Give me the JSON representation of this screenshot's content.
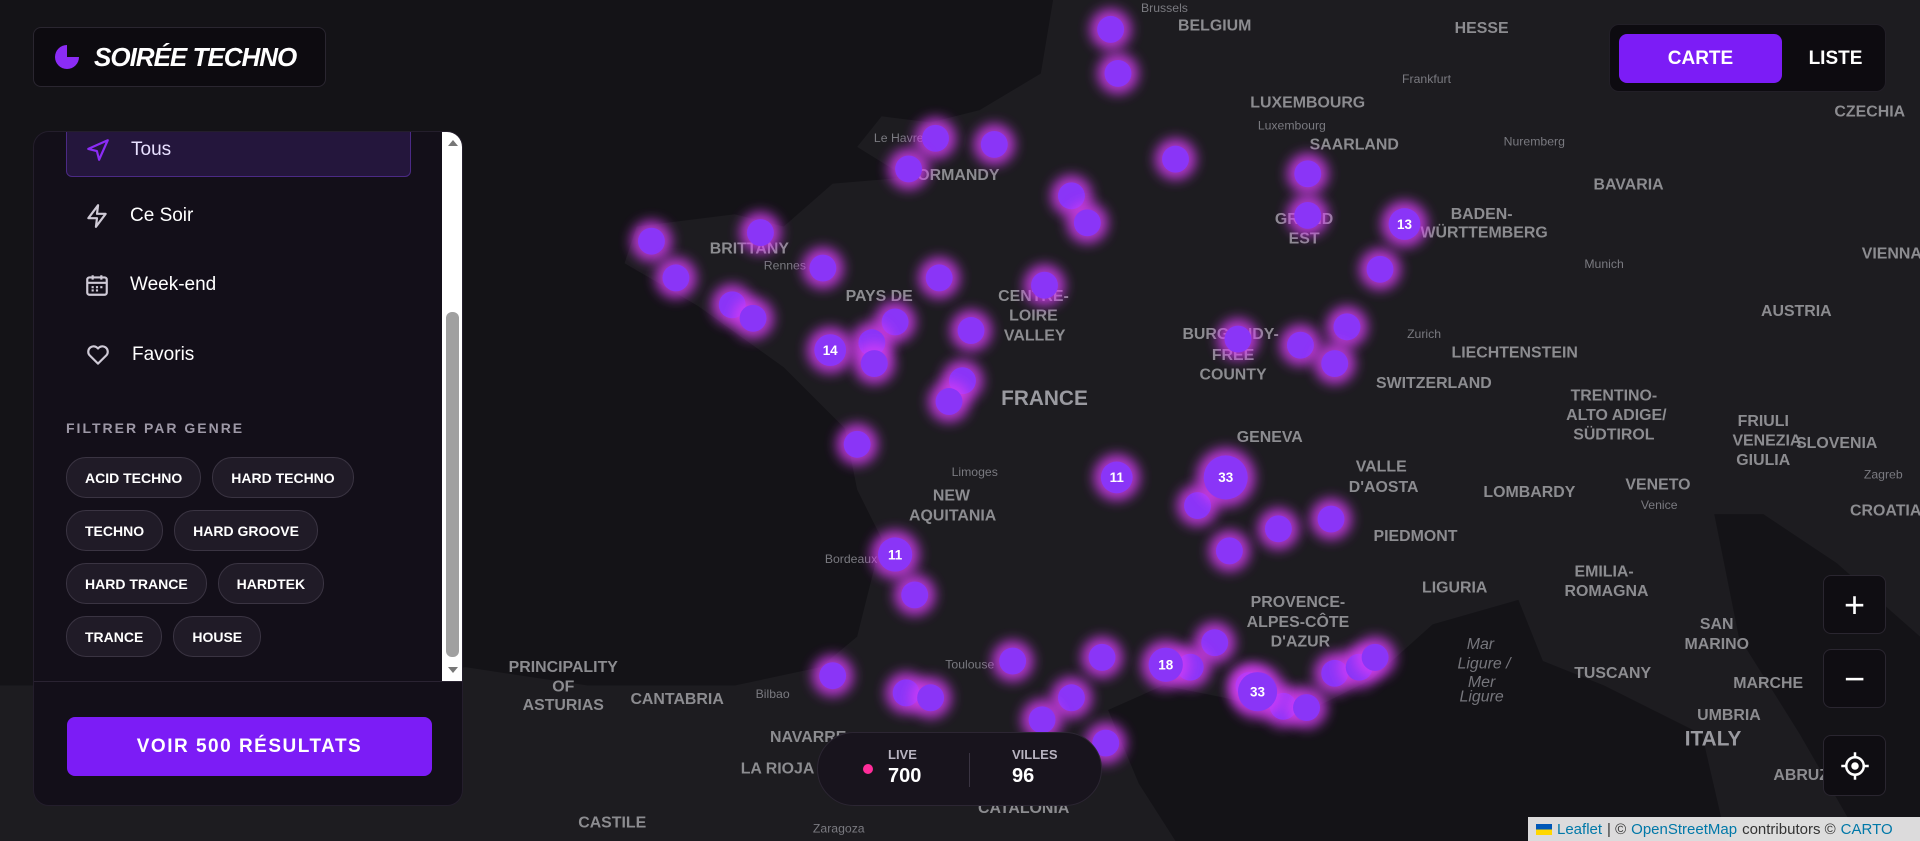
{
  "header": {
    "logo": "SOIRÉE TECHNO",
    "nav": [
      "CARTE",
      "LISTE"
    ]
  },
  "sidebar": {
    "menu": [
      "Tous",
      "Ce Soir",
      "Week-end",
      "Favoris"
    ],
    "filter_title": "FILTRER PAR GENRE",
    "genres": [
      "ACID TECHNO",
      "HARD TECHNO",
      "TECHNO",
      "HARD GROOVE",
      "HARD TRANCE",
      "HARDTEK",
      "TRANCE",
      "HOUSE"
    ],
    "button": "VOIR 500 RÉSULTATS"
  },
  "stats": [
    {
      "label": "LIVE",
      "value": 700
    },
    {
      "label": "VILLES",
      "value": 96
    }
  ],
  "map": {
    "clusters": [
      14,
      13,
      11,
      33,
      11,
      18,
      33
    ],
    "labels": [
      "BELGIUM",
      "Brussels",
      "HESSE",
      "Frankfurt",
      "LUXEMBOURG",
      "Luxembourg",
      "SAARLAND",
      "Nuremberg",
      "BAVARIA",
      "BADEN-",
      "WÜRTTEMBERG",
      "CZECHIA",
      "Munich",
      "VIENNA",
      "AUSTRIA",
      "Zurich",
      "LIECHTENSTEIN",
      "SWITZERLAND",
      "FRANCE",
      "BRITTANY",
      "NORMANDY",
      "CENTRE-",
      "LOIRE",
      "VALLEY",
      "GRAND",
      "EST",
      "BURGUNDY-",
      "FREE",
      "COUNTY",
      "PAYS DE",
      "Limoges",
      "NEW",
      "AQUITANIA",
      "Bordeaux",
      "GENEVA",
      "VALLE",
      "D'AOSTA",
      "LOMBARDY",
      "PIEDMONT",
      "TRENTINO-",
      "ALTO ADIGE/",
      "SÜDTIROL",
      "FRIULI",
      "VENEZIA",
      "GIULIA",
      "SLOVENIA",
      "VENETO",
      "Venice",
      "Zagreb",
      "CROATIA",
      "LIGURIA",
      "EMILIA-",
      "ROMAGNA",
      "PROVENCE-",
      "ALPES-CÔTE",
      "D'AZUR",
      "SAN",
      "MARINO",
      "MARCHE",
      "TUSCANY",
      "UMBRIA",
      "ITALY",
      "ABRUZZO",
      "Mar",
      "Ligure /",
      "Mer",
      "Ligure",
      "PRINCIPALITY",
      "OF",
      "ASTURIAS",
      "CANTABRIA",
      "Bilbao",
      "NAVARRE",
      "LA RIOJA",
      "CATALONIA",
      "Zaragoza",
      "CASTILE",
      "Toulouse",
      "Le Havre",
      "Rennes"
    ],
    "zoom": [
      "+",
      "−"
    ],
    "attribution": [
      "Leaflet",
      "| ©",
      "OpenStreetMap",
      "contributors ©",
      "CARTO"
    ]
  }
}
